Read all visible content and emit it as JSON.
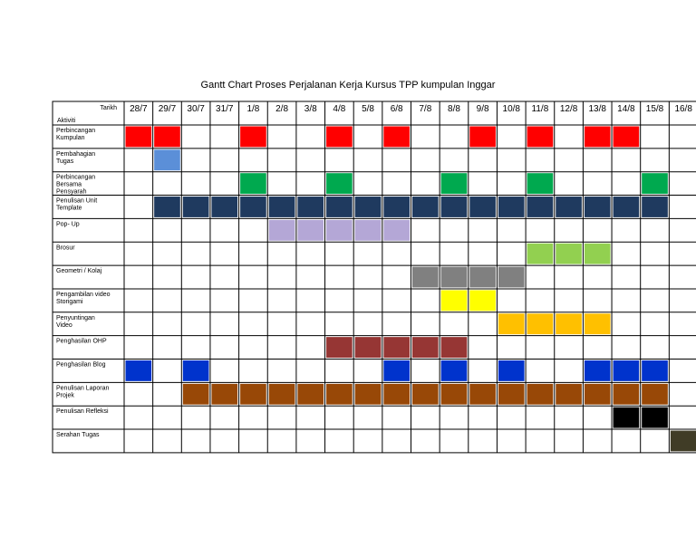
{
  "chart_data": {
    "type": "gantt",
    "title": "Gantt Chart Proses Perjalanan Kerja Kursus TPP kumpulan Inggar",
    "header": {
      "date_label": "Tarikh",
      "activity_label": "Aktiviti"
    },
    "dates": [
      "28/7",
      "29/7",
      "30/7",
      "31/7",
      "1/8",
      "2/8",
      "3/8",
      "4/8",
      "5/8",
      "6/8",
      "7/8",
      "8/8",
      "9/8",
      "10/8",
      "11/8",
      "12/8",
      "13/8",
      "14/8",
      "15/8",
      "16/8"
    ],
    "tasks": [
      {
        "label": "Perbincangan Kumpulan",
        "lines": [
          "Perbincangan",
          "Kumpulan"
        ],
        "color": "#ff0000",
        "days": [
          "28/7",
          "29/7",
          "1/8",
          "4/8",
          "6/8",
          "9/8",
          "11/8",
          "13/8",
          "14/8"
        ]
      },
      {
        "label": "Pembahagian Tugas",
        "lines": [
          "Pembahagian",
          "Tugas"
        ],
        "color": "#5b8fd8",
        "days": [
          "29/7"
        ]
      },
      {
        "label": "Perbincangan Bersama Pensyarah",
        "lines": [
          "Perbincangan",
          "Bersama",
          "Pensyarah"
        ],
        "color": "#00a94f",
        "days": [
          "1/8",
          "4/8",
          "8/8",
          "11/8",
          "15/8"
        ]
      },
      {
        "label": "Penulisan Unit Template",
        "lines": [
          "Penulisan Unit",
          "Template"
        ],
        "color": "#1f3a5f",
        "days": [
          "29/7",
          "30/7",
          "31/7",
          "1/8",
          "2/8",
          "3/8",
          "4/8",
          "5/8",
          "6/8",
          "7/8",
          "8/8",
          "9/8",
          "10/8",
          "11/8",
          "12/8",
          "13/8",
          "14/8",
          "15/8"
        ]
      },
      {
        "label": "Pop- Up",
        "lines": [
          "Pop- Up"
        ],
        "color": "#b4a7d6",
        "days": [
          "2/8",
          "3/8",
          "4/8",
          "5/8",
          "6/8"
        ]
      },
      {
        "label": "Brosur",
        "lines": [
          "Brosur"
        ],
        "color": "#92d050",
        "days": [
          "11/8",
          "12/8",
          "13/8"
        ]
      },
      {
        "label": "Geometri / Kolaj",
        "lines": [
          "Geometri / Kolaj"
        ],
        "color": "#808080",
        "days": [
          "7/8",
          "8/8",
          "9/8",
          "10/8"
        ]
      },
      {
        "label": "Pengambilan video Storigami",
        "lines": [
          "Pengambilan video",
          "Storigami"
        ],
        "color": "#ffff00",
        "days": [
          "8/8",
          "9/8"
        ]
      },
      {
        "label": "Penyuntingan Video",
        "lines": [
          "Penyuntingan",
          "Video"
        ],
        "color": "#ffc000",
        "days": [
          "10/8",
          "11/8",
          "12/8",
          "13/8"
        ]
      },
      {
        "label": "Penghasilan OHP",
        "lines": [
          "Penghasilan OHP"
        ],
        "color": "#963634",
        "days": [
          "4/8",
          "5/8",
          "6/8",
          "7/8",
          "8/8"
        ]
      },
      {
        "label": "Penghasilan Blog",
        "lines": [
          "Penghasilan Blog"
        ],
        "color": "#0033cc",
        "days": [
          "28/7",
          "30/7",
          "6/8",
          "8/8",
          "10/8",
          "13/8",
          "14/8",
          "15/8"
        ]
      },
      {
        "label": "Penulisan Laporan Projek",
        "lines": [
          "Penulisan Laporan",
          "Projek"
        ],
        "color": "#984807",
        "days": [
          "30/7",
          "31/7",
          "1/8",
          "2/8",
          "3/8",
          "4/8",
          "5/8",
          "6/8",
          "7/8",
          "8/8",
          "9/8",
          "10/8",
          "11/8",
          "12/8",
          "13/8",
          "14/8",
          "15/8"
        ]
      },
      {
        "label": "Penulisan Refleksi",
        "lines": [
          "Penulisan Refleksi"
        ],
        "color": "#000000",
        "days": [
          "14/8",
          "15/8"
        ]
      },
      {
        "label": "Serahan Tugas",
        "lines": [
          "Serahan Tugas"
        ],
        "color": "#403c26",
        "days": [
          "16/8"
        ]
      }
    ]
  }
}
